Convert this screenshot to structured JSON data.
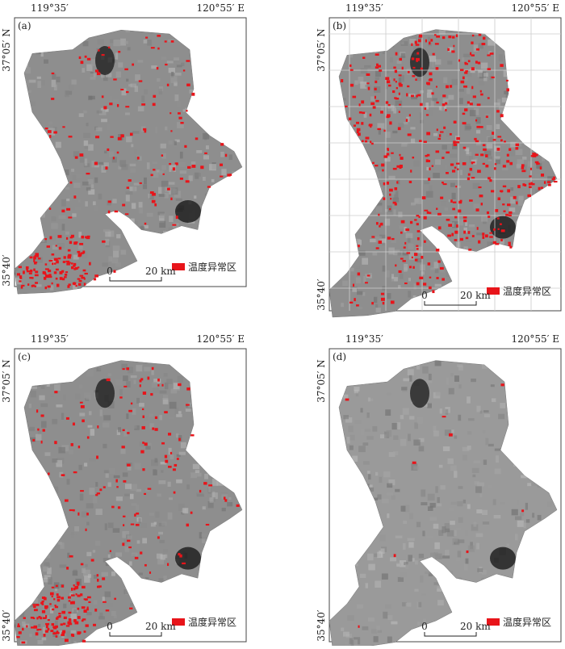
{
  "panels": [
    {
      "label": "(a)",
      "lon_left": "119°35′",
      "lon_right": "120°55′ E",
      "lat_top": "37°05′ N",
      "lat_bottom": "35°40′",
      "legend": "温度异常区",
      "scale": {
        "start": "0",
        "end": "20 km"
      },
      "grid": false
    },
    {
      "label": "(b)",
      "lon_left": "119°35′",
      "lon_right": "120°55′ E",
      "lat_top": "37°05′ N",
      "lat_bottom": "35°40′",
      "legend": "温度异常区",
      "scale": {
        "start": "0",
        "end": "20 km"
      },
      "grid": true
    },
    {
      "label": "(c)",
      "lon_left": "119°35′",
      "lon_right": "120°55′ E",
      "lat_top": "37°05′ N",
      "lat_bottom": "35°40′",
      "legend": "温度异常区",
      "scale": {
        "start": "0",
        "end": "20 km"
      },
      "grid": false
    },
    {
      "label": "(d)",
      "lon_left": "119°35′",
      "lon_right": "120°55′ E",
      "lat_top": "37°05′ N",
      "lat_bottom": "35°40′",
      "legend": "温度异常区",
      "scale": {
        "start": "0",
        "end": "20 km"
      },
      "grid": false
    }
  ]
}
